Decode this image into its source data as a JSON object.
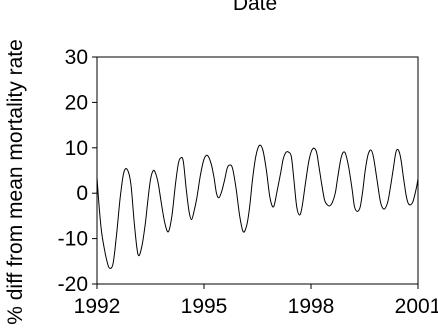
{
  "chart_data": {
    "type": "line",
    "title": "Date",
    "xlabel": "",
    "ylabel": "% diff from mean mortality rate",
    "xlim": [
      1992,
      2001
    ],
    "ylim": [
      -20,
      30
    ],
    "x_ticks": [
      1992,
      1995,
      1998,
      2001
    ],
    "x_tick_labels": [
      "1992",
      "1995",
      "1998",
      "2001"
    ],
    "y_ticks": [
      -20,
      -10,
      0,
      10,
      20,
      30
    ],
    "y_tick_labels": [
      "-20",
      "-10",
      "0",
      "10",
      "20",
      "30"
    ],
    "grid": false,
    "series": [
      {
        "color": "#000000",
        "x": [
          1992.0,
          1992.05,
          1992.12,
          1992.2,
          1992.28,
          1992.35,
          1992.45,
          1992.55,
          1992.65,
          1992.75,
          1992.85,
          1992.95,
          1993.05,
          1993.15,
          1993.25,
          1993.35,
          1993.42,
          1993.5,
          1993.58,
          1993.65,
          1993.72,
          1993.8,
          1993.9,
          1994.0,
          1994.1,
          1994.2,
          1994.28,
          1994.35,
          1994.42,
          1994.5,
          1994.58,
          1994.65,
          1994.72,
          1994.8,
          1994.9,
          1995.0,
          1995.1,
          1995.2,
          1995.28,
          1995.35,
          1995.42,
          1995.5,
          1995.58,
          1995.65,
          1995.72,
          1995.8,
          1995.9,
          1996.0,
          1996.1,
          1996.2,
          1996.28,
          1996.36,
          1996.45,
          1996.55,
          1996.65,
          1996.75,
          1996.85,
          1996.95,
          1997.05,
          1997.15,
          1997.22,
          1997.3,
          1997.38,
          1997.45,
          1997.52,
          1997.6,
          1997.68,
          1997.75,
          1997.85,
          1997.95,
          1998.05,
          1998.15,
          1998.22,
          1998.3,
          1998.38,
          1998.45,
          1998.52,
          1998.6,
          1998.68,
          1998.75,
          1998.85,
          1998.95,
          1999.05,
          1999.15,
          1999.22,
          1999.3,
          1999.38,
          1999.45,
          1999.52,
          1999.6,
          1999.68,
          1999.75,
          1999.85,
          1999.95,
          2000.05,
          2000.15,
          2000.22,
          2000.3,
          2000.38,
          2000.45,
          2000.52,
          2000.6,
          2000.68,
          2000.75,
          2000.85,
          2000.95,
          2001.0
        ],
        "y": [
          3.5,
          -2,
          -8,
          -12,
          -15,
          -16.5,
          -15.5,
          -9,
          -1,
          4.5,
          5.2,
          2,
          -7,
          -13.5,
          -12,
          -7,
          -2,
          3,
          5,
          4.2,
          2,
          -2,
          -6.5,
          -8.5,
          -5,
          2,
          6.5,
          7.8,
          7,
          1,
          -4,
          -5.8,
          -4,
          -1,
          4,
          7.5,
          8.3,
          6.5,
          3.5,
          0,
          -1,
          0.5,
          3,
          5.5,
          6.2,
          5.5,
          1,
          -5,
          -8.5,
          -7,
          -3,
          3,
          8,
          10.5,
          9.5,
          5,
          -1,
          -3,
          0.5,
          4.5,
          7.5,
          9,
          9,
          8,
          3,
          -3,
          -4.8,
          -3,
          2.5,
          7.5,
          9.8,
          9.2,
          6,
          2,
          -1.5,
          -2.5,
          -2.8,
          -2,
          0,
          3.5,
          8,
          9,
          6,
          1,
          -3,
          -4,
          -3,
          0.5,
          5,
          8.5,
          9.5,
          8,
          3,
          -2,
          -3.5,
          -2,
          1,
          5,
          9,
          9.5,
          7.5,
          3,
          -1,
          -2.5,
          -2,
          1,
          3.2
        ]
      }
    ]
  }
}
